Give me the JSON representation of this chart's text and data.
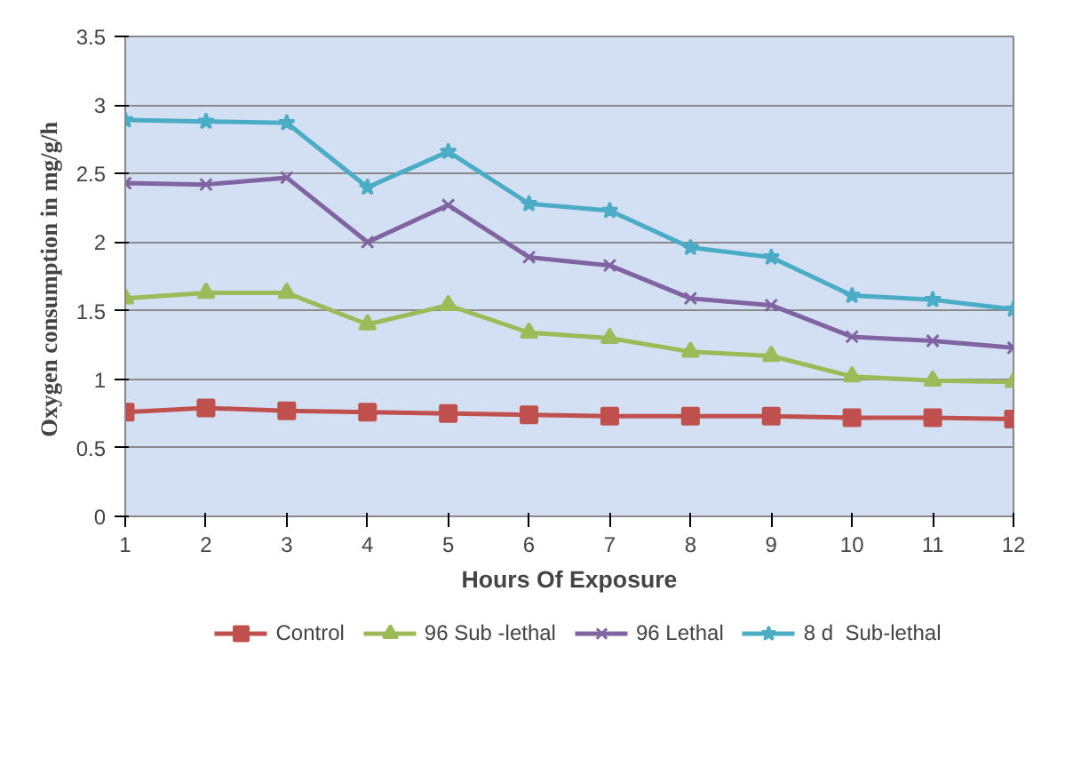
{
  "chart_data": {
    "type": "line",
    "xlabel": "Hours Of Exposure",
    "ylabel": "Oxygen  consumption in mg/g/h",
    "x": [
      1,
      2,
      3,
      4,
      5,
      6,
      7,
      8,
      9,
      10,
      11,
      12
    ],
    "xlim": [
      1,
      12
    ],
    "xticks": [
      1,
      2,
      3,
      4,
      5,
      6,
      7,
      8,
      9,
      10,
      11,
      12
    ],
    "ylim": [
      0,
      3.5
    ],
    "yticks": [
      0,
      {
        "value": 0.5,
        "label": "0.5"
      },
      1,
      {
        "value": 1.5,
        "label": "1.5"
      },
      2,
      {
        "value": 2.5,
        "label": "2.5"
      },
      3,
      {
        "value": 3.5,
        "label": "3.5"
      }
    ],
    "grid": "y",
    "legend": "bottom",
    "line_style": "solid",
    "series": [
      {
        "name": "Control",
        "color": "#c0504d",
        "marker": "square",
        "values": [
          0.76,
          0.79,
          0.77,
          0.76,
          0.75,
          0.74,
          0.73,
          0.73,
          0.73,
          0.72,
          0.72,
          0.71
        ]
      },
      {
        "name": "96 Sub -lethal",
        "color": "#9bbb59",
        "marker": "triangle",
        "values": [
          1.59,
          1.63,
          1.63,
          1.4,
          1.54,
          1.34,
          1.3,
          1.2,
          1.17,
          1.02,
          0.99,
          0.98
        ]
      },
      {
        "name": "96 Lethal",
        "color": "#8064a2",
        "marker": "cross",
        "values": [
          2.43,
          2.42,
          2.47,
          2.0,
          2.27,
          1.89,
          1.83,
          1.59,
          1.54,
          1.31,
          1.28,
          1.23
        ]
      },
      {
        "name": "8 d  Sub-lethal",
        "color": "#4bacc6",
        "marker": "star",
        "values": [
          2.89,
          2.88,
          2.87,
          2.4,
          2.66,
          2.28,
          2.23,
          1.96,
          1.89,
          1.61,
          1.58,
          1.51
        ]
      }
    ]
  }
}
